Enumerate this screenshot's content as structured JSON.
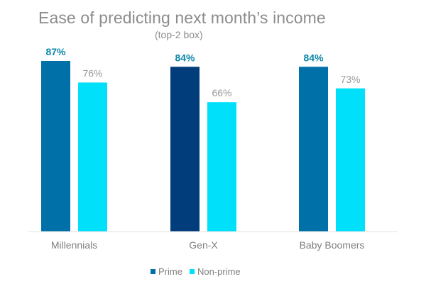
{
  "chart_data": {
    "type": "bar",
    "title": "Ease of predicting next month’s income",
    "subtitle": "(top-2 box)",
    "categories": [
      "Millennials",
      "Gen-X",
      "Baby Boomers"
    ],
    "series": [
      {
        "name": "Prime",
        "values": [
          87,
          84,
          84
        ],
        "labels": [
          "87%",
          "84%",
          "84%"
        ],
        "color": "#0070a8",
        "point_colors": [
          "#0070a8",
          "#003d7a",
          "#0070a8"
        ],
        "label_color": "#0b86a8"
      },
      {
        "name": "Non-prime",
        "values": [
          76,
          66,
          73
        ],
        "labels": [
          "76%",
          "66%",
          "73%"
        ],
        "color": "#00e0fa",
        "label_color": "#9a9a9a"
      }
    ],
    "ylim": [
      0,
      100
    ],
    "grid": false,
    "legend_position": "bottom"
  }
}
